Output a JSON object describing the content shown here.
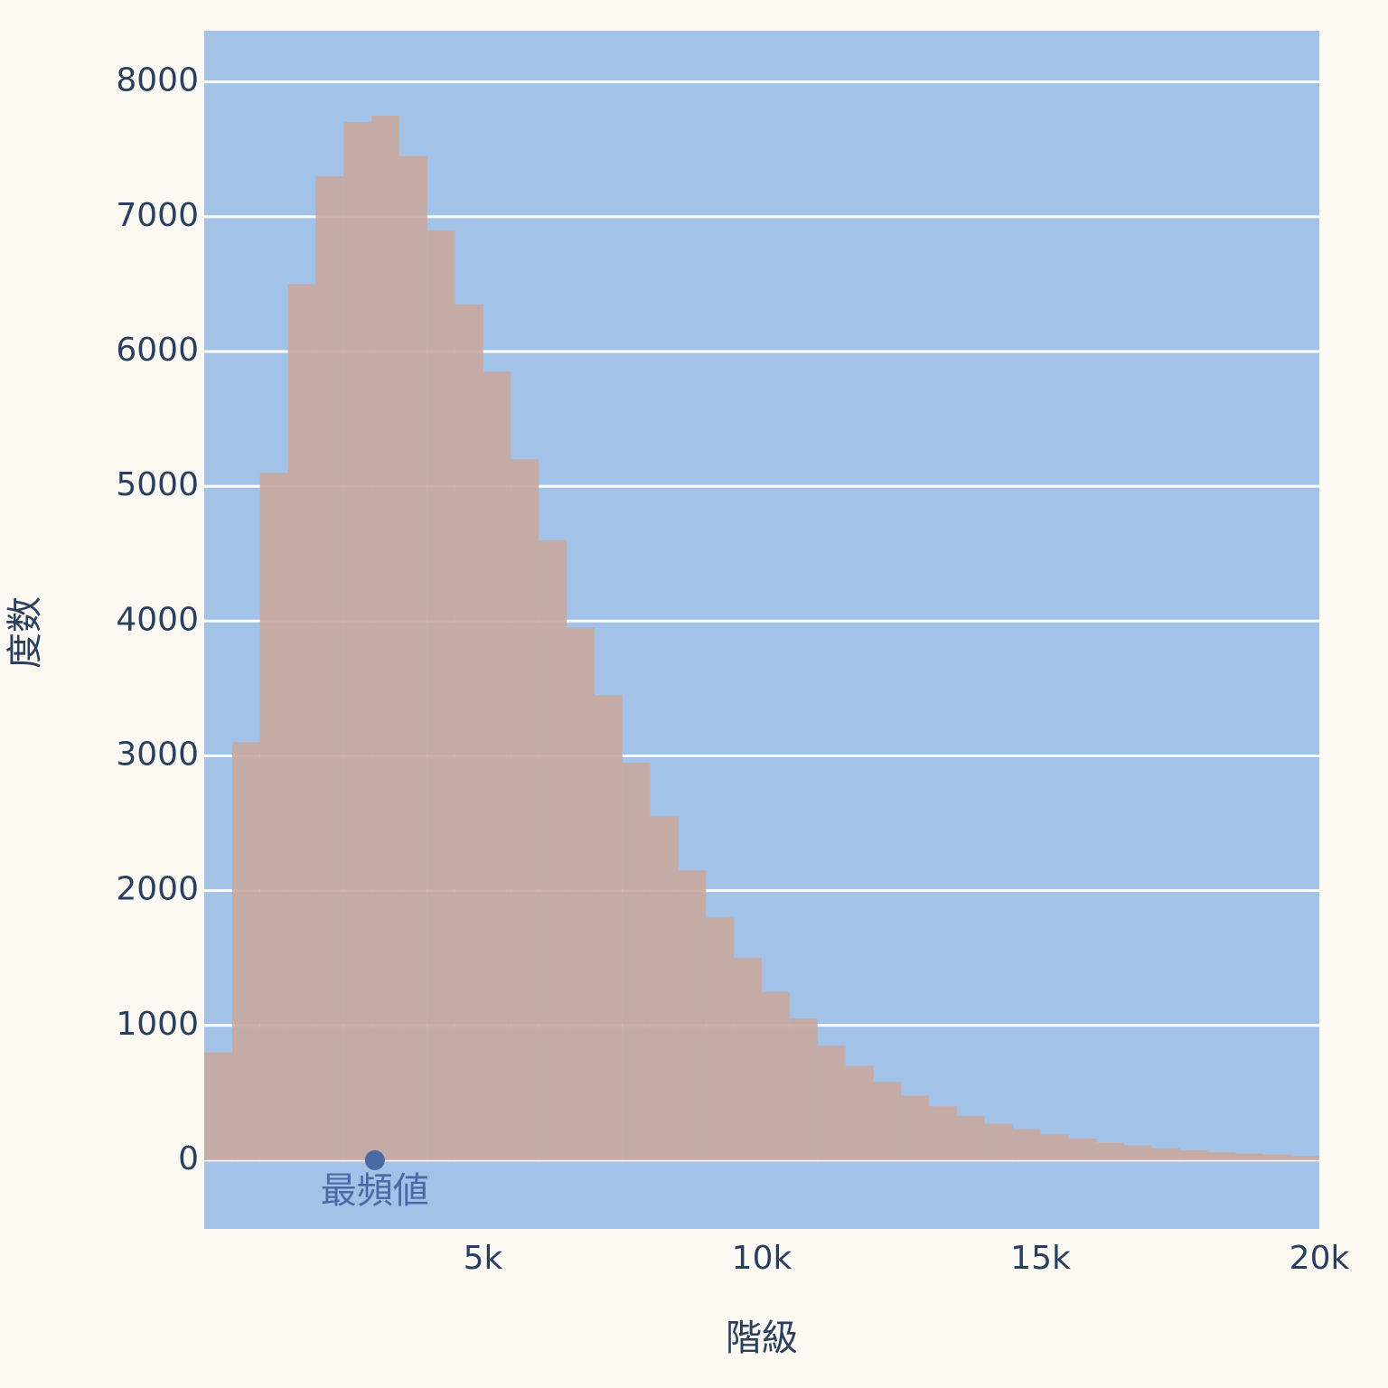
{
  "chart_data": {
    "type": "histogram",
    "x_label": "階級",
    "y_label": "度数",
    "bins": [
      0,
      500,
      1000,
      1500,
      2000,
      2500,
      3000,
      3500,
      4000,
      4500,
      5000,
      5500,
      6000,
      6500,
      7000,
      7500,
      8000,
      8500,
      9000,
      9500,
      10000,
      10500,
      11000,
      11500,
      12000,
      12500,
      13000,
      13500,
      14000,
      14500,
      15000,
      15500,
      16000,
      16500,
      17000,
      17500,
      18000,
      18500,
      19000,
      19500,
      20000
    ],
    "values": [
      800,
      3100,
      5100,
      6500,
      7300,
      7700,
      7750,
      7450,
      6900,
      6350,
      5850,
      5200,
      4600,
      3950,
      3450,
      2950,
      2550,
      2150,
      1800,
      1500,
      1250,
      1050,
      850,
      700,
      580,
      480,
      400,
      330,
      270,
      230,
      190,
      160,
      130,
      110,
      90,
      75,
      60,
      50,
      40,
      32
    ],
    "color": "#c9a99e",
    "xlim": [
      0,
      20000
    ],
    "xticks": [
      {
        "value": 5000,
        "label": "5k"
      },
      {
        "value": 10000,
        "label": "10k"
      },
      {
        "value": 15000,
        "label": "15k"
      },
      {
        "value": 20000,
        "label": "20k"
      }
    ],
    "ylim": [
      -510,
      8380
    ],
    "yticks": [
      0,
      1000,
      2000,
      3000,
      4000,
      5000,
      6000,
      7000,
      8000
    ],
    "grid": true,
    "annotation": {
      "text": "最頻値",
      "x": 3060,
      "y": 0,
      "color": "#4a6aa5"
    }
  }
}
